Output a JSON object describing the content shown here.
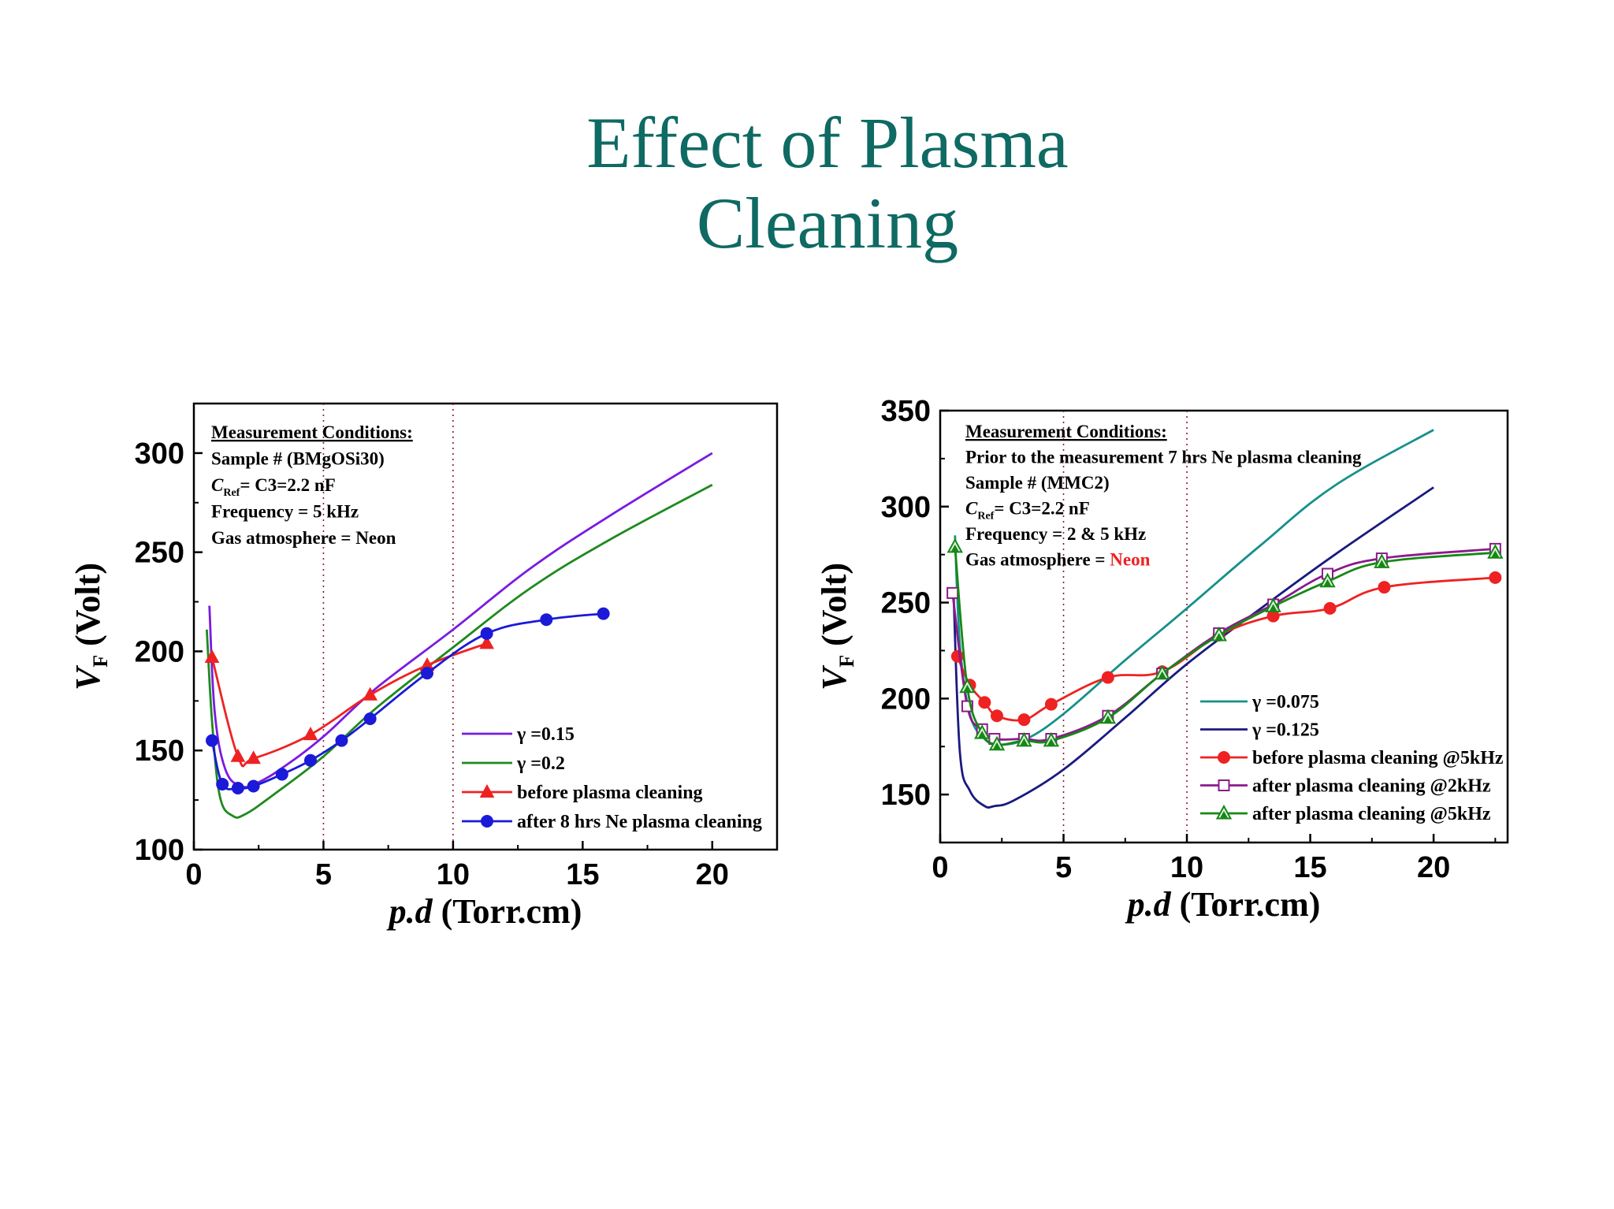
{
  "slide": {
    "title_line1": "Effect of Plasma",
    "title_line2": "Cleaning"
  },
  "chart_data": [
    {
      "type": "line",
      "xlabel": "p.d (Torr.cm)",
      "ylabel": "VF (Volt)",
      "xlim": [
        0,
        22.5
      ],
      "ylim": [
        100,
        325
      ],
      "xticks": [
        0,
        5,
        10,
        15,
        20
      ],
      "yticks": [
        100,
        150,
        200,
        250,
        300
      ],
      "grid": false,
      "legend_position": "bottom-right",
      "vlines": [
        5,
        10
      ],
      "notes": [
        "Measurement Conditions:",
        "Sample # (BMgOSi30)",
        "C",
        "Ref",
        "= C3=2.2 nF",
        "Frequency = 5 kHz",
        "Gas atmosphere = Neon"
      ],
      "series": [
        {
          "name": "γ =0.15",
          "color": "#7a1be0",
          "marker": "none",
          "x": [
            0.6,
            0.8,
            1.2,
            1.8,
            2.5,
            3.5,
            5,
            7,
            10,
            13,
            16,
            20
          ],
          "y": [
            223,
            170,
            141,
            132,
            134,
            142,
            157,
            181,
            211,
            242,
            268,
            300
          ]
        },
        {
          "name": "γ =0.2",
          "color": "#1e8a1e",
          "marker": "none",
          "x": [
            0.5,
            0.7,
            1.0,
            1.5,
            2.0,
            3.0,
            5,
            7,
            10,
            13,
            16,
            20
          ],
          "y": [
            211,
            165,
            127,
            117,
            118,
            127,
            147,
            171,
            202,
            232,
            256,
            284
          ]
        },
        {
          "name": "before plasma cleaning",
          "color": "#ee2222",
          "marker": "triangle",
          "x": [
            0.7,
            1.7,
            2.3,
            4.5,
            6.8,
            9.0,
            11.3
          ],
          "y": [
            197,
            147,
            146,
            158,
            178,
            193,
            204
          ]
        },
        {
          "name": "after 8 hrs Ne plasma cleaning",
          "color": "#1a1ad8",
          "marker": "circle",
          "x": [
            0.7,
            1.1,
            1.7,
            2.3,
            3.4,
            4.5,
            5.7,
            6.8,
            9.0,
            11.3,
            13.6,
            15.8
          ],
          "y": [
            155,
            133,
            131,
            132,
            138,
            145,
            155,
            166,
            189,
            209,
            216,
            219
          ]
        }
      ]
    },
    {
      "type": "line",
      "xlabel": "p.d (Torr.cm)",
      "ylabel": "VF (Volt)",
      "xlim": [
        0,
        23
      ],
      "ylim": [
        125,
        350
      ],
      "xticks": [
        0,
        5,
        10,
        15,
        20
      ],
      "yticks": [
        150,
        200,
        250,
        300,
        350
      ],
      "grid": false,
      "legend_position": "bottom-right",
      "vlines": [
        5,
        10
      ],
      "notes": [
        "Measurement Conditions:",
        "Prior to the measurement 7 hrs Ne plasma cleaning",
        "Sample # (MMC2)",
        "C",
        "Ref",
        "= C3=2.2 nF",
        "Frequency = 2 & 5 kHz",
        "Gas atmosphere =",
        "Neon"
      ],
      "series": [
        {
          "name": "γ =0.075",
          "color": "#16908a",
          "marker": "none",
          "x": [
            0.6,
            0.8,
            1.2,
            1.8,
            2.4,
            3.5,
            5,
            7.5,
            10,
            13,
            16,
            20
          ],
          "y": [
            285,
            228,
            192,
            179,
            176,
            179,
            192,
            220,
            247,
            280,
            311,
            340
          ]
        },
        {
          "name": "γ =0.125",
          "color": "#1a1a80",
          "marker": "none",
          "x": [
            0.55,
            0.8,
            1.2,
            1.8,
            2.2,
            3.0,
            5,
            7.5,
            10,
            13,
            16,
            20
          ],
          "y": [
            252,
            172,
            152,
            144,
            144,
            147,
            163,
            190,
            218,
            247,
            275,
            310
          ]
        },
        {
          "name": "before plasma cleaning @5kHz",
          "color": "#ee2222",
          "marker": "circle",
          "x": [
            0.7,
            1.2,
            1.8,
            2.3,
            3.4,
            4.5,
            6.8,
            9.0,
            11.3,
            13.5,
            15.8,
            18.0,
            22.5
          ],
          "y": [
            222,
            207,
            198,
            191,
            189,
            197,
            211,
            214,
            233,
            243,
            247,
            258,
            263
          ]
        },
        {
          "name": "after plasma cleaning @2kHz",
          "color": "#8b1a8b",
          "marker": "square",
          "x": [
            0.5,
            1.1,
            1.7,
            2.2,
            3.4,
            4.5,
            6.8,
            9.0,
            11.3,
            13.5,
            15.7,
            17.9,
            22.5
          ],
          "y": [
            255,
            196,
            184,
            179,
            179,
            179,
            191,
            213,
            234,
            249,
            265,
            273,
            278
          ]
        },
        {
          "name": "after plasma cleaning @5kHz",
          "color": "#168816",
          "marker": "triangle",
          "x": [
            0.6,
            1.1,
            1.7,
            2.3,
            3.4,
            4.5,
            6.8,
            9.0,
            11.3,
            13.5,
            15.7,
            17.9,
            22.5
          ],
          "y": [
            279,
            206,
            182,
            176,
            178,
            178,
            190,
            213,
            233,
            248,
            261,
            271,
            276
          ]
        }
      ]
    }
  ]
}
